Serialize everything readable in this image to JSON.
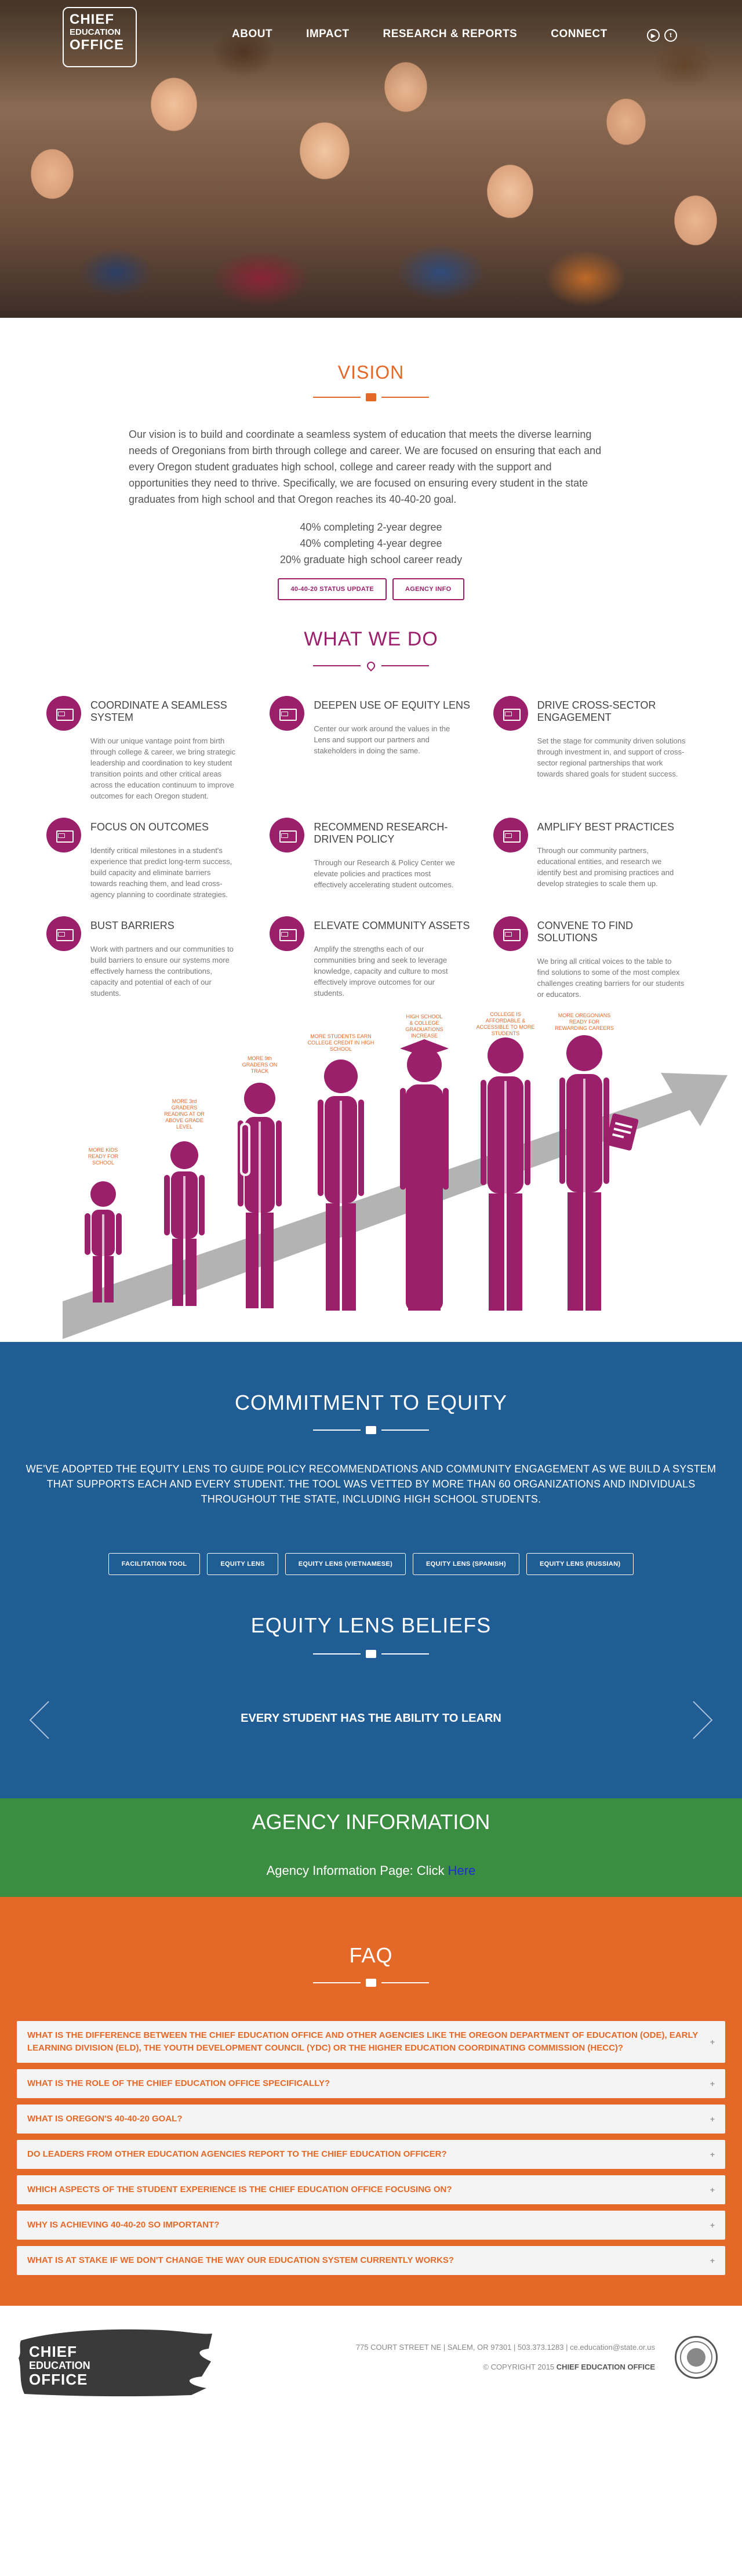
{
  "header": {
    "logo": {
      "line1": "CHIEF",
      "line2": "EDUCATION",
      "line3": "OFFICE"
    },
    "nav": [
      "ABOUT",
      "IMPACT",
      "RESEARCH & REPORTS",
      "CONNECT"
    ],
    "social": [
      {
        "icon": "youtube-icon",
        "glyph": "▶"
      },
      {
        "icon": "twitter-icon",
        "glyph": "t"
      }
    ]
  },
  "vision": {
    "title": "VISION",
    "text": "Our vision is to build and coordinate a seamless system of education that meets the diverse learning needs of Oregonians from birth through college and career. We are focused on ensuring that each and every Oregon student graduates high school, college and career ready with the support and opportunities they need to thrive. Specifically, we are focused on ensuring every student in the state graduates from high school and that Oregon reaches its 40-40-20 goal.",
    "goals": [
      "40% completing 2-year degree",
      "40% completing 4-year degree",
      "20% graduate high school career ready"
    ],
    "buttons": [
      "40-40-20 STATUS UPDATE",
      "AGENCY INFO"
    ]
  },
  "what_we_do": {
    "title": "WHAT WE DO",
    "items": [
      {
        "title": "COORDINATE A SEAMLESS SYSTEM",
        "text": "With our unique vantage point from birth through college & career, we bring strategic leadership and coordination to key student transition points and other critical areas across the education continuum to improve outcomes for each Oregon student."
      },
      {
        "title": "DEEPEN USE OF EQUITY LENS",
        "text": "Center our work around the values in the Lens and support our partners and stakeholders in doing the same."
      },
      {
        "title": "DRIVE CROSS-SECTOR ENGAGEMENT",
        "text": "Set the stage for community driven solutions through investment in, and support of cross-sector regional partnerships that work towards shared goals for student success."
      },
      {
        "title": "FOCUS ON OUTCOMES",
        "text": "Identify critical milestones in a student's experience that predict long-term success, build capacity and eliminate barriers towards reaching them, and lead cross-agency planning to coordinate strategies."
      },
      {
        "title": "RECOMMEND RESEARCH-DRIVEN POLICY",
        "text": "Through our Research & Policy Center we elevate policies and practices most effectively accelerating student outcomes."
      },
      {
        "title": "AMPLIFY BEST PRACTICES",
        "text": "Through our community partners, educational entities, and research we identify best and promising practices and develop strategies to scale them up."
      },
      {
        "title": "BUST BARRIERS",
        "text": "Work with partners and our communities to build barriers to ensure our systems more effectively harness the contributions, capacity and potential of each of our students."
      },
      {
        "title": "ELEVATE COMMUNITY ASSETS",
        "text": "Amplify the strengths each of our communities bring and seek to leverage knowledge, capacity and culture to most effectively improve outcomes for our students."
      },
      {
        "title": "CONVENE TO FIND SOLUTIONS",
        "text": "We bring all critical voices to the table to find solutions to some of the most complex challenges creating barriers for our students or educators."
      }
    ]
  },
  "growth": {
    "labels": [
      [
        "MORE KIDS",
        "READY FOR",
        "SCHOOL"
      ],
      [
        "MORE 3rd",
        "GRADERS",
        "READING AT OR",
        "ABOVE GRADE",
        "LEVEL"
      ],
      [
        "MORE 9th",
        "GRADERS ON",
        "TRACK"
      ],
      [
        "MORE STUDENTS EARN",
        "COLLEGE CREDIT IN HIGH",
        "SCHOOL"
      ],
      [
        "HIGH SCHOOL",
        "& COLLEGE",
        "GRADUATIONS",
        "INCREASE"
      ],
      [
        "COLLEGE IS",
        "AFFORDABLE &",
        "ACCESSIBLE TO MORE",
        "STUDENTS"
      ],
      [
        "MORE OREGONIANS",
        "READY FOR",
        "REWARDING CAREERS"
      ]
    ],
    "colors": {
      "figure": "#9b1f6a",
      "label": "#e46928",
      "arrow": "#b3b3b3"
    }
  },
  "equity": {
    "title": "COMMITMENT TO EQUITY",
    "text": "WE'VE ADOPTED THE EQUITY LENS TO GUIDE POLICY RECOMMENDATIONS AND COMMUNITY ENGAGEMENT AS WE BUILD A SYSTEM THAT SUPPORTS EACH AND EVERY STUDENT. THE TOOL WAS VETTED BY MORE THAN 60 ORGANIZATIONS AND INDIVIDUALS THROUGHOUT THE STATE, INCLUDING HIGH SCHOOL STUDENTS.",
    "buttons": [
      "FACILITATION TOOL",
      "EQUITY LENS",
      "EQUITY LENS (VIETNAMESE)",
      "EQUITY LENS (SPANISH)",
      "EQUITY LENS (RUSSIAN)"
    ],
    "beliefs_title": "EQUITY LENS BELIEFS",
    "belief": "EVERY STUDENT HAS THE ABILITY TO LEARN"
  },
  "agency": {
    "title": "AGENCY INFORMATION",
    "text": "Agency Information Page: Click ",
    "link": "Here"
  },
  "faq": {
    "title": "FAQ",
    "items": [
      "WHAT IS THE DIFFERENCE BETWEEN THE CHIEF EDUCATION OFFICE AND OTHER AGENCIES LIKE THE OREGON DEPARTMENT OF EDUCATION (ODE), EARLY LEARNING DIVISION (ELD), THE YOUTH DEVELOPMENT COUNCIL (YDC) OR THE HIGHER EDUCATION COORDINATING COMMISSION (HECC)?",
      "WHAT IS THE ROLE OF THE CHIEF EDUCATION OFFICE SPECIFICALLY?",
      "WHAT IS OREGON'S 40-40-20 GOAL?",
      "DO LEADERS FROM OTHER EDUCATION AGENCIES REPORT TO THE CHIEF EDUCATION OFFICER?",
      "WHICH ASPECTS OF THE STUDENT EXPERIENCE IS THE CHIEF EDUCATION OFFICE FOCUSING ON?",
      "WHY IS ACHIEVING 40-40-20 SO IMPORTANT?",
      "WHAT IS AT STAKE IF WE DON'T CHANGE THE WAY OUR EDUCATION SYSTEM CURRENTLY WORKS?"
    ],
    "expand_glyph": "+"
  },
  "footer": {
    "logo": {
      "line1": "CHIEF",
      "line2": "EDUCATION",
      "line3": "OFFICE"
    },
    "address": "775 COURT STREET NE | SALEM, OR 97301 | 503.373.1283 | ce.education@state.or.us",
    "copyright_prefix": "© COPYRIGHT 2015",
    "copyright_name": "CHIEF EDUCATION OFFICE"
  }
}
